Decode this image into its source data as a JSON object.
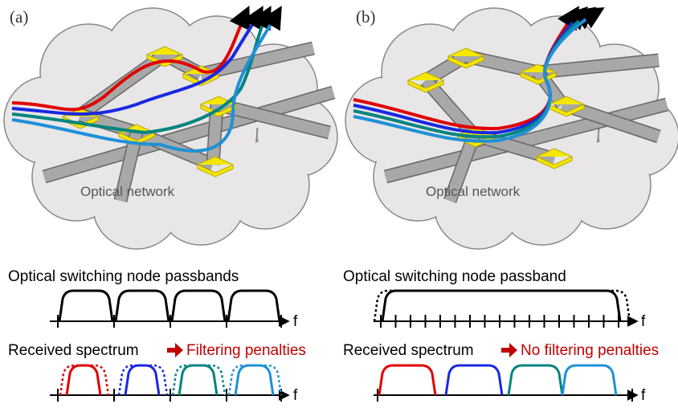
{
  "panels": [
    {
      "label": "(a)",
      "network_label": "Optical network",
      "passband_title": "Optical switching node passbands",
      "spectrum_title": "Received spectrum",
      "spectrum_result": "Filtering penalties",
      "axis_label": "f"
    },
    {
      "label": "(b)",
      "network_label": "Optical network",
      "passband_title": "Optical switching node passband",
      "spectrum_title": "Received spectrum",
      "spectrum_result": "No filtering penalties",
      "axis_label": "f"
    }
  ]
}
